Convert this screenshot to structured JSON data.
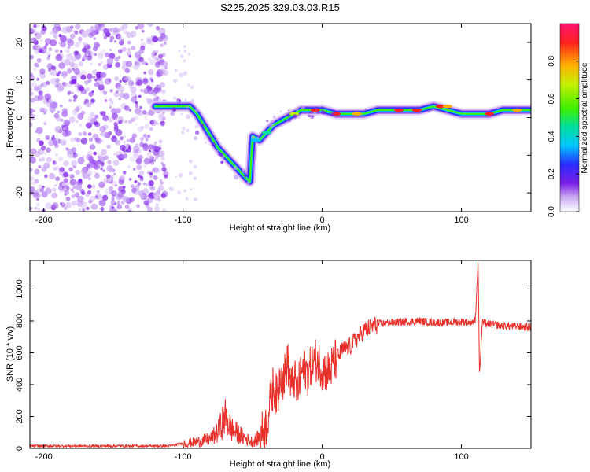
{
  "title": "S225.2025.329.03.03.R15",
  "colors": {
    "snr_line": "#e8302a",
    "background": "#ffffff",
    "axis": "#000000",
    "colormap": [
      "#ffffff",
      "#c8a6f2",
      "#7b1fe6",
      "#2a2aff",
      "#00c8ff",
      "#00e0a0",
      "#40f000",
      "#c8f000",
      "#ffb000",
      "#ff2020",
      "#ff1470"
    ]
  },
  "chart_data": [
    {
      "id": "spectrogram",
      "type": "heatmap",
      "xlabel": "Height of straight line (km)",
      "ylabel": "Frequency (Hz)",
      "xlim": [
        -210,
        150
      ],
      "ylim": [
        -25,
        25
      ],
      "xticks": [
        -200,
        -100,
        0,
        100
      ],
      "yticks": [
        -20,
        -10,
        0,
        10,
        20
      ],
      "colorbar": {
        "label": "Normalized spectral amplitude",
        "range": [
          0,
          1
        ],
        "ticks": [
          0.0,
          0.2,
          0.4,
          0.6,
          0.8
        ]
      },
      "dominant_frequency_track": {
        "x_km": [
          -120,
          -110,
          -100,
          -95,
          -90,
          -85,
          -80,
          -75,
          -70,
          -65,
          -60,
          -55,
          -52,
          -50,
          -45,
          -40,
          -35,
          -30,
          -25,
          -20,
          -15,
          -10,
          -5,
          0,
          10,
          20,
          30,
          40,
          50,
          60,
          70,
          80,
          90,
          100,
          110,
          120,
          130,
          140,
          150
        ],
        "freq_hz": [
          3,
          3,
          3,
          3,
          1,
          -2,
          -5,
          -8,
          -10,
          -12,
          -14,
          -16,
          -17,
          -5,
          -6,
          -4,
          -2,
          -1,
          0,
          1,
          2,
          2,
          2,
          2,
          1,
          1,
          1,
          2,
          2,
          2,
          2,
          3,
          2,
          1,
          1,
          1,
          2,
          2,
          2
        ]
      },
      "noise_region_km": [
        -210,
        -120
      ]
    },
    {
      "id": "snr",
      "type": "line",
      "xlabel": "Height of straight line (km)",
      "ylabel": "SNR (10 * v/v)",
      "xlim": [
        -210,
        150
      ],
      "ylim": [
        0,
        1180
      ],
      "xticks": [
        -200,
        -100,
        0,
        100
      ],
      "yticks": [
        0,
        200,
        400,
        600,
        800,
        1000
      ],
      "series": [
        {
          "name": "SNR",
          "x": [
            -210,
            -150,
            -110,
            -100,
            -90,
            -80,
            -75,
            -70,
            -65,
            -60,
            -55,
            -50,
            -45,
            -40,
            -38,
            -35,
            -32,
            -30,
            -28,
            -25,
            -22,
            -20,
            -18,
            -15,
            -12,
            -10,
            -8,
            -5,
            -2,
            0,
            5,
            10,
            15,
            20,
            25,
            30,
            40,
            50,
            60,
            70,
            80,
            90,
            100,
            105,
            110,
            112,
            113,
            115,
            120,
            130,
            140,
            150
          ],
          "y": [
            15,
            15,
            15,
            30,
            40,
            60,
            100,
            200,
            120,
            90,
            60,
            40,
            70,
            150,
            250,
            400,
            300,
            500,
            420,
            550,
            380,
            440,
            350,
            480,
            500,
            460,
            520,
            560,
            540,
            500,
            480,
            560,
            620,
            640,
            690,
            740,
            780,
            790,
            795,
            800,
            790,
            790,
            795,
            790,
            800,
            1180,
            460,
            790,
            780,
            770,
            765,
            760
          ]
        }
      ]
    }
  ]
}
